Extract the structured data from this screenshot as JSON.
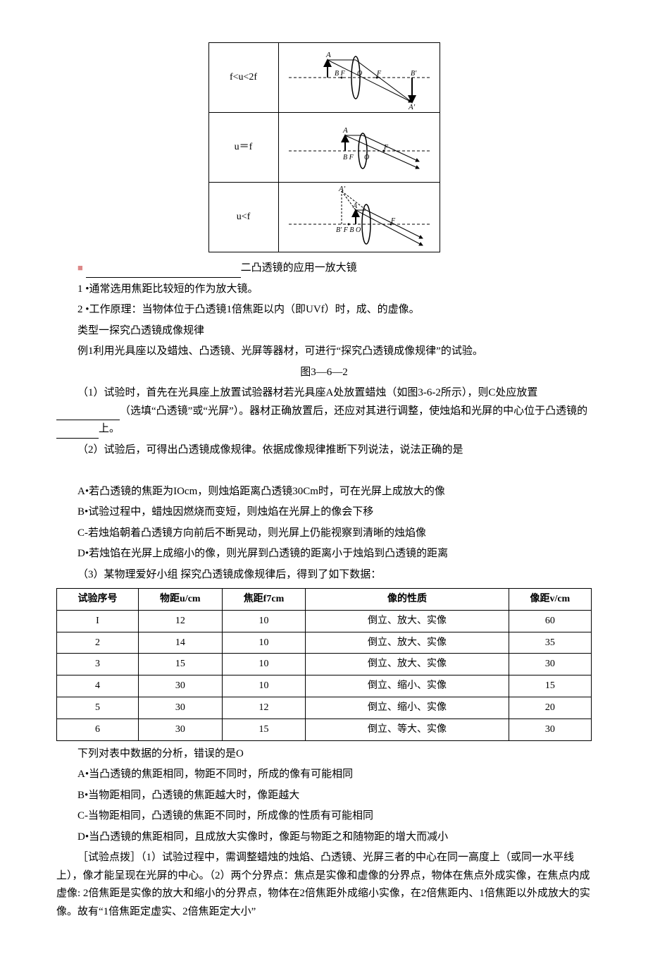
{
  "diagram": {
    "rows": [
      {
        "condition": "f<u<2f"
      },
      {
        "condition": "u＝f"
      },
      {
        "condition": "u<f"
      }
    ]
  },
  "section_magnifier_heading": "二凸透镜的应用一放大镜",
  "magnifier_point1": "1 •通常选用焦距比较短的作为放大镜。",
  "magnifier_point2": "2 •工作原理：当物体位于凸透镜1倍焦距以内（即UVf）时，成、的虚像。",
  "type_heading": "类型一探究凸透镜成像规律",
  "example_intro": "例1利用光具座以及蜡烛、凸透镜、光屏等器材，可进行“探究凸透镜成像规律”的试验。",
  "fig_caption": "图3—6—2",
  "q1_pre": "（1）试验时，首先在光具座上放置试验器材若光具座A处放置蜡烛（如图3-6-2所示），则C处应放置 ",
  "q1_mid": "（选填“凸透镜”或“光屏”）。器材正确放置后，还应对其进行调整，使烛焰和光屏的中心位于凸透镜的 ",
  "q1_post": "上。",
  "q2_intro": "（2）试验后，可得出凸透镜成像规律。依据成像规律推断下列说法，说法正确的是",
  "optA": "A•若凸透镜的焦距为IOcm，则烛焰距离凸透镜30Cm时，可在光屏上成放大的像",
  "optB": "B•试验过程中，蜡烛因燃烧而变短，则烛焰在光屏上的像会下移",
  "optC": "C-若烛焰朝着凸透镜方向前后不断晃动，则光屏上仍能视察到清晰的烛焰像",
  "optD": "D•若烛馅在光屏上成缩小的像，则光屏到凸透镜的距离小于烛焰到凸透镜的距离",
  "q3_intro": "（3）某物理爱好小组 探究凸透镜成像规律后，得到了如下数据：",
  "table": {
    "headers": [
      "试验序号",
      "物距u/cm",
      "焦距f7cm",
      "像的性质",
      "像距v/cm"
    ],
    "rows": [
      [
        "I",
        "12",
        "10",
        "倒立、放大、实像",
        "60"
      ],
      [
        "2",
        "14",
        "10",
        "倒立、放大、实像",
        "35"
      ],
      [
        "3",
        "15",
        "10",
        "倒立、放大、实像",
        "30"
      ],
      [
        "4",
        "30",
        "10",
        "倒立、缩小、实像",
        "15"
      ],
      [
        "5",
        "30",
        "12",
        "倒立、缩小、实像",
        "20"
      ],
      [
        "6",
        "30",
        "15",
        "倒立、等大、实像",
        "30"
      ]
    ]
  },
  "q3_after": "下列对表中数据的分析，错误的是O",
  "aA": "A•当凸透镜的焦距相同，物距不同时，所成的像有可能相同",
  "aB": "B•当物距相同，凸透镜的焦距越大时，像距越大",
  "aC": "C-当物距相同，凸透镜的焦距不同时，所成像的性质有可能相同",
  "aD": "D•当凸透镜的焦距相同，且成放大实像时，像距与物距之和随物距的增大而减小",
  "analysis": "［试验点拨］（1）试验过程中，需调整蜡烛的烛焰、凸透镜、光屏三者的中心在同一高度上（或同一水平线上），像才能呈现在光屏的中心。（2）两个分界点：焦点是实像和虚像的分界点，物体在焦点外成实像，在焦点内成虚像: 2倍焦距是实像的放大和缩小的分界点，物体在2倍焦距外成缩小实像，在2倍焦距内、1倍焦距以外成放大的实像。故有“1倍焦距定虚实、2倍焦距定大小”"
}
